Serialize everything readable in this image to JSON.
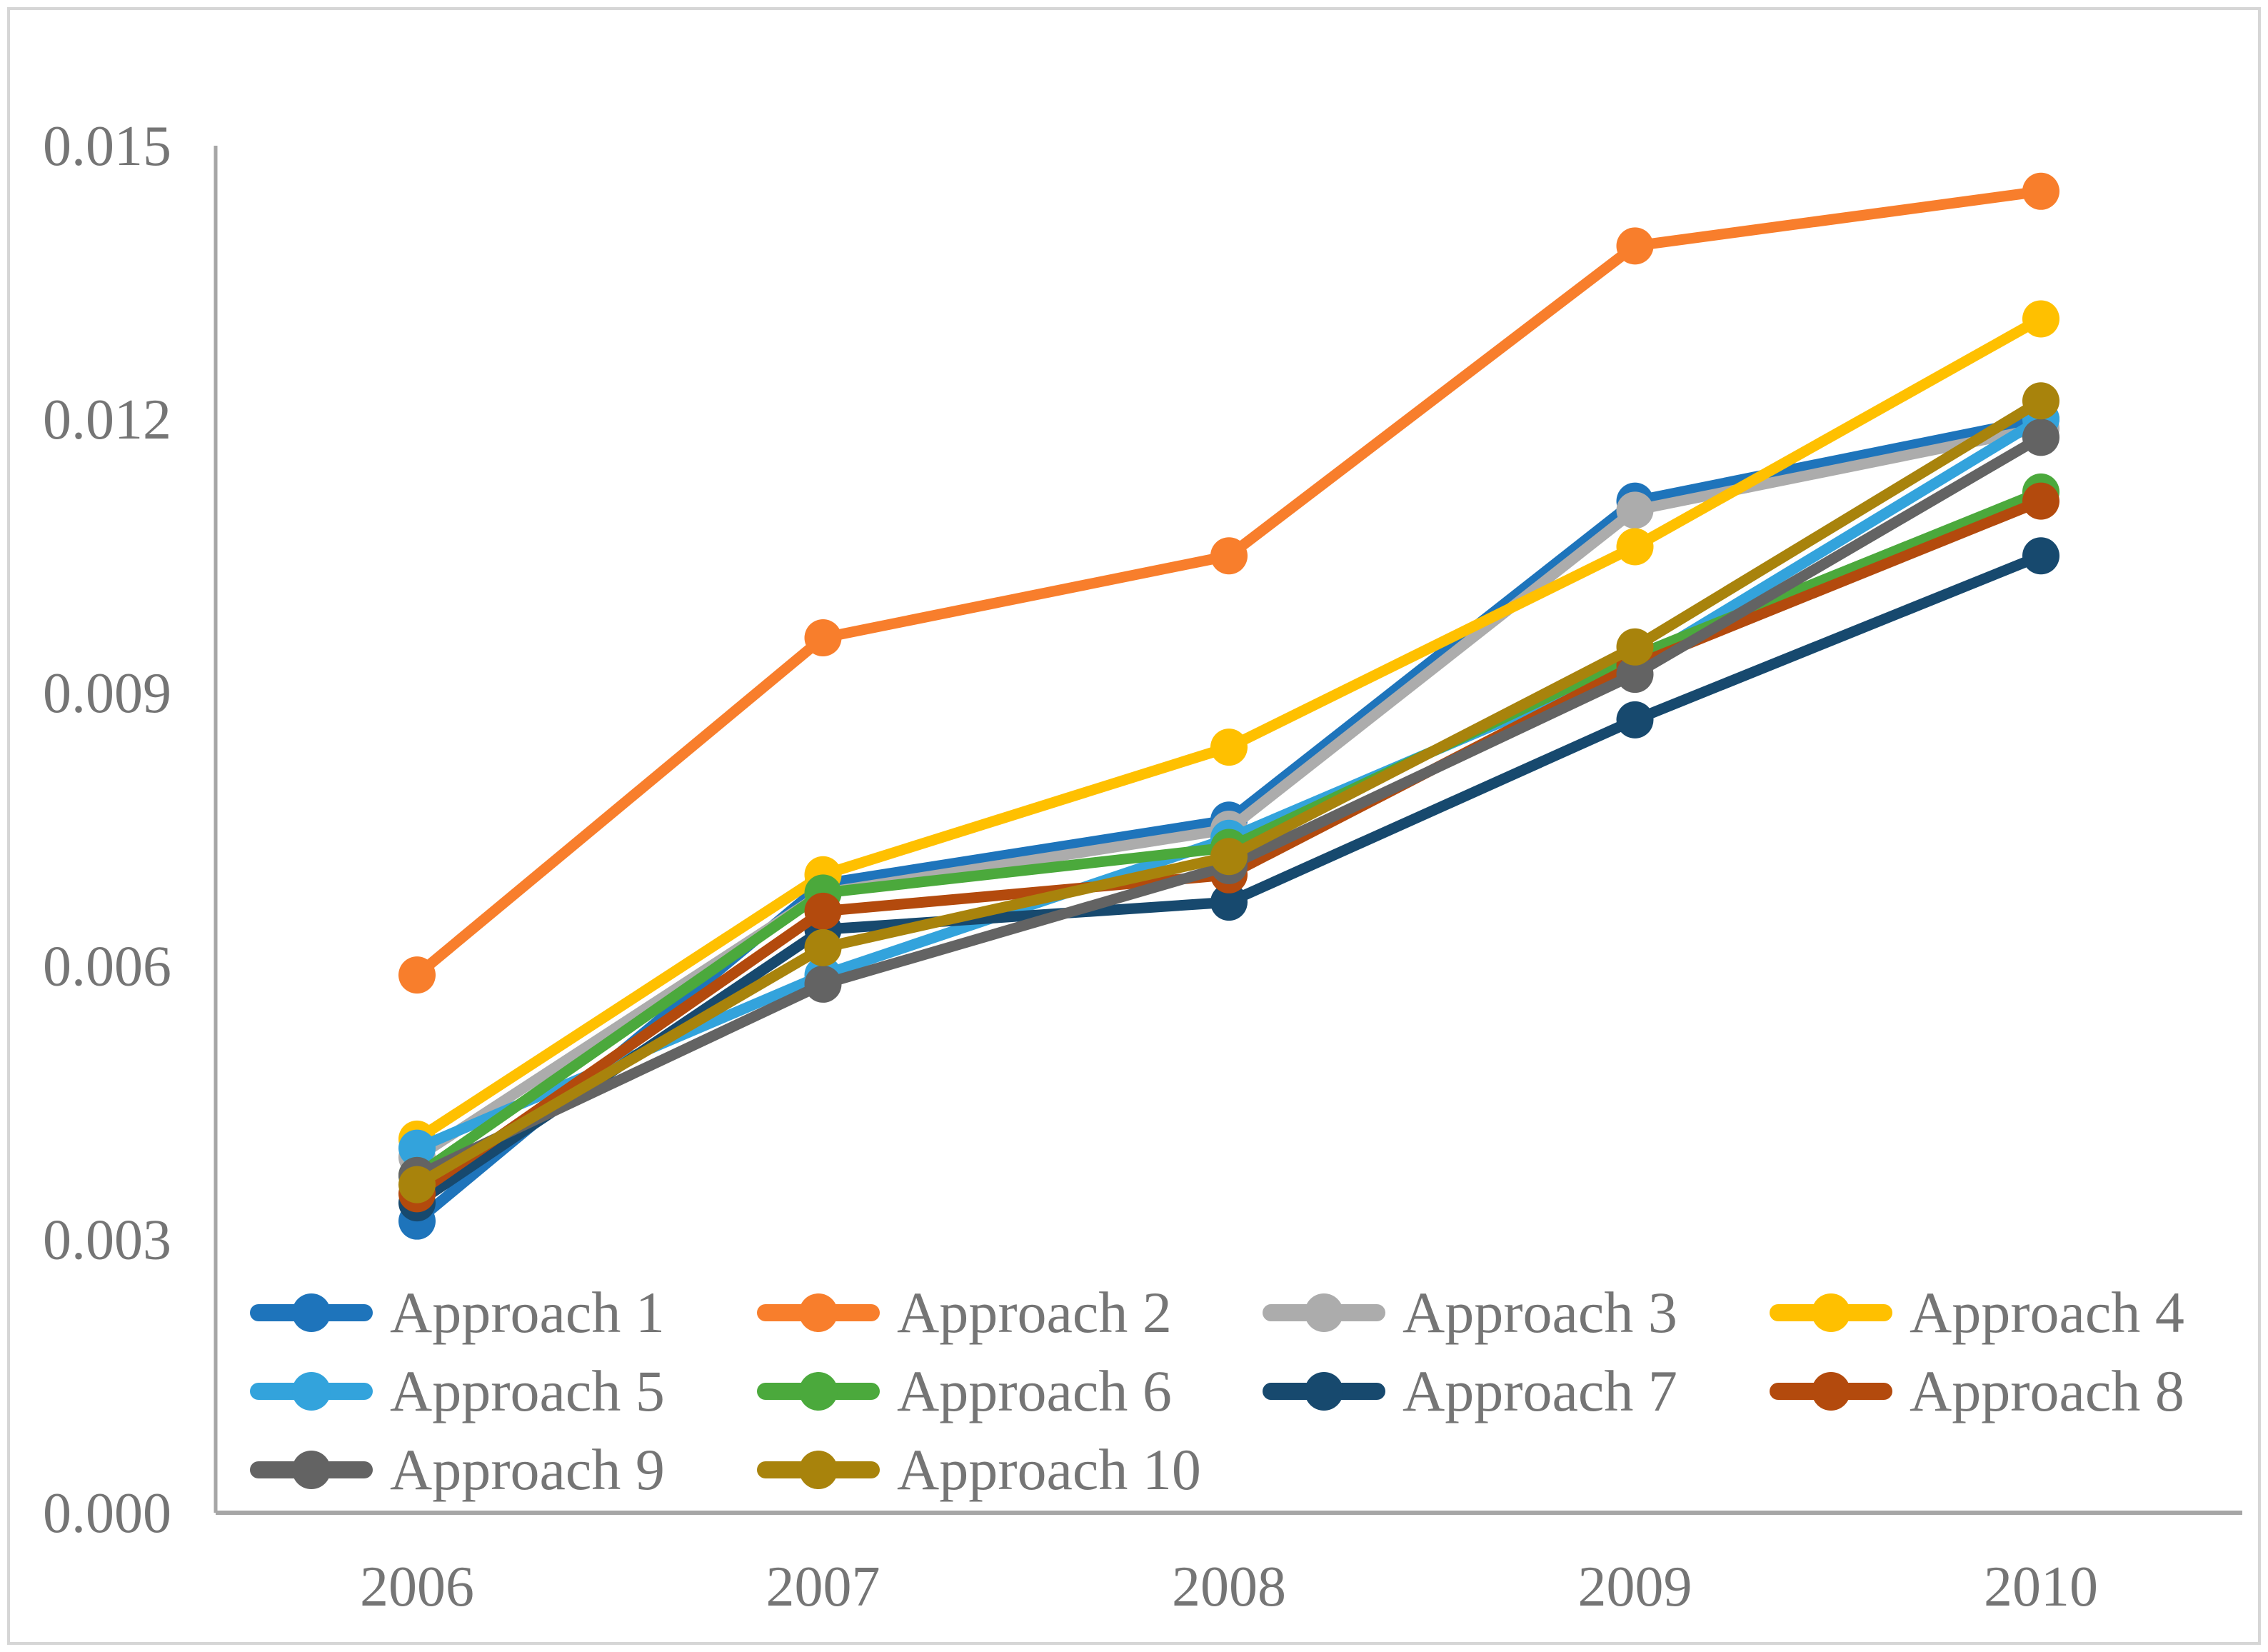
{
  "figure": {
    "background_color": "#ffffff",
    "border_color": "#d6d6d6",
    "axis_line_color": "#a6a6a6",
    "label_text_color": "#757575"
  },
  "chart_data": {
    "type": "line",
    "title": "",
    "xlabel": "",
    "ylabel": "",
    "categories": [
      "2006",
      "2007",
      "2008",
      "2009",
      "2010"
    ],
    "ylim": [
      0.0,
      0.015
    ],
    "ytick_labels": [
      "0.000",
      "0.003",
      "0.006",
      "0.009",
      "0.012",
      "0.015"
    ],
    "grid": false,
    "legend_position": "inside-bottom-left",
    "marker_style": "circle-on-line",
    "series": [
      {
        "name": "Approach 1",
        "color": "#1e74bb",
        "values": [
          0.0032,
          0.0069,
          0.0076,
          0.0111,
          0.012
        ]
      },
      {
        "name": "Approach 2",
        "color": "#f87e2c",
        "values": [
          0.0059,
          0.0096,
          0.0105,
          0.0139,
          0.0145
        ]
      },
      {
        "name": "Approach 3",
        "color": "#acacac",
        "values": [
          0.0039,
          0.0068,
          0.0075,
          0.011,
          0.0119
        ]
      },
      {
        "name": "Approach 4",
        "color": "#ffc000",
        "values": [
          0.0041,
          0.007,
          0.0084,
          0.0106,
          0.0131
        ]
      },
      {
        "name": "Approach 5",
        "color": "#33a3dc",
        "values": [
          0.004,
          0.0059,
          0.0074,
          0.0093,
          0.012
        ]
      },
      {
        "name": "Approach 6",
        "color": "#4ba93c",
        "values": [
          0.0037,
          0.0068,
          0.0073,
          0.0094,
          0.0112
        ]
      },
      {
        "name": "Approach 7",
        "color": "#17496e",
        "values": [
          0.0034,
          0.0064,
          0.0067,
          0.0087,
          0.0105
        ]
      },
      {
        "name": "Approach 8",
        "color": "#b34a0d",
        "values": [
          0.0035,
          0.0066,
          0.007,
          0.0093,
          0.0111
        ]
      },
      {
        "name": "Approach 9",
        "color": "#636363",
        "values": [
          0.0037,
          0.0058,
          0.0071,
          0.0092,
          0.0118
        ]
      },
      {
        "name": "Approach 10",
        "color": "#a8830c",
        "values": [
          0.0036,
          0.0062,
          0.0072,
          0.0095,
          0.0122
        ]
      }
    ],
    "legend_layout_rows": [
      [
        "Approach 1",
        "Approach 2",
        "Approach 3",
        "Approach 4"
      ],
      [
        "Approach 5",
        "Approach 6",
        "Approach 7",
        "Approach 8"
      ],
      [
        "Approach 9",
        "Approach 10"
      ]
    ]
  }
}
